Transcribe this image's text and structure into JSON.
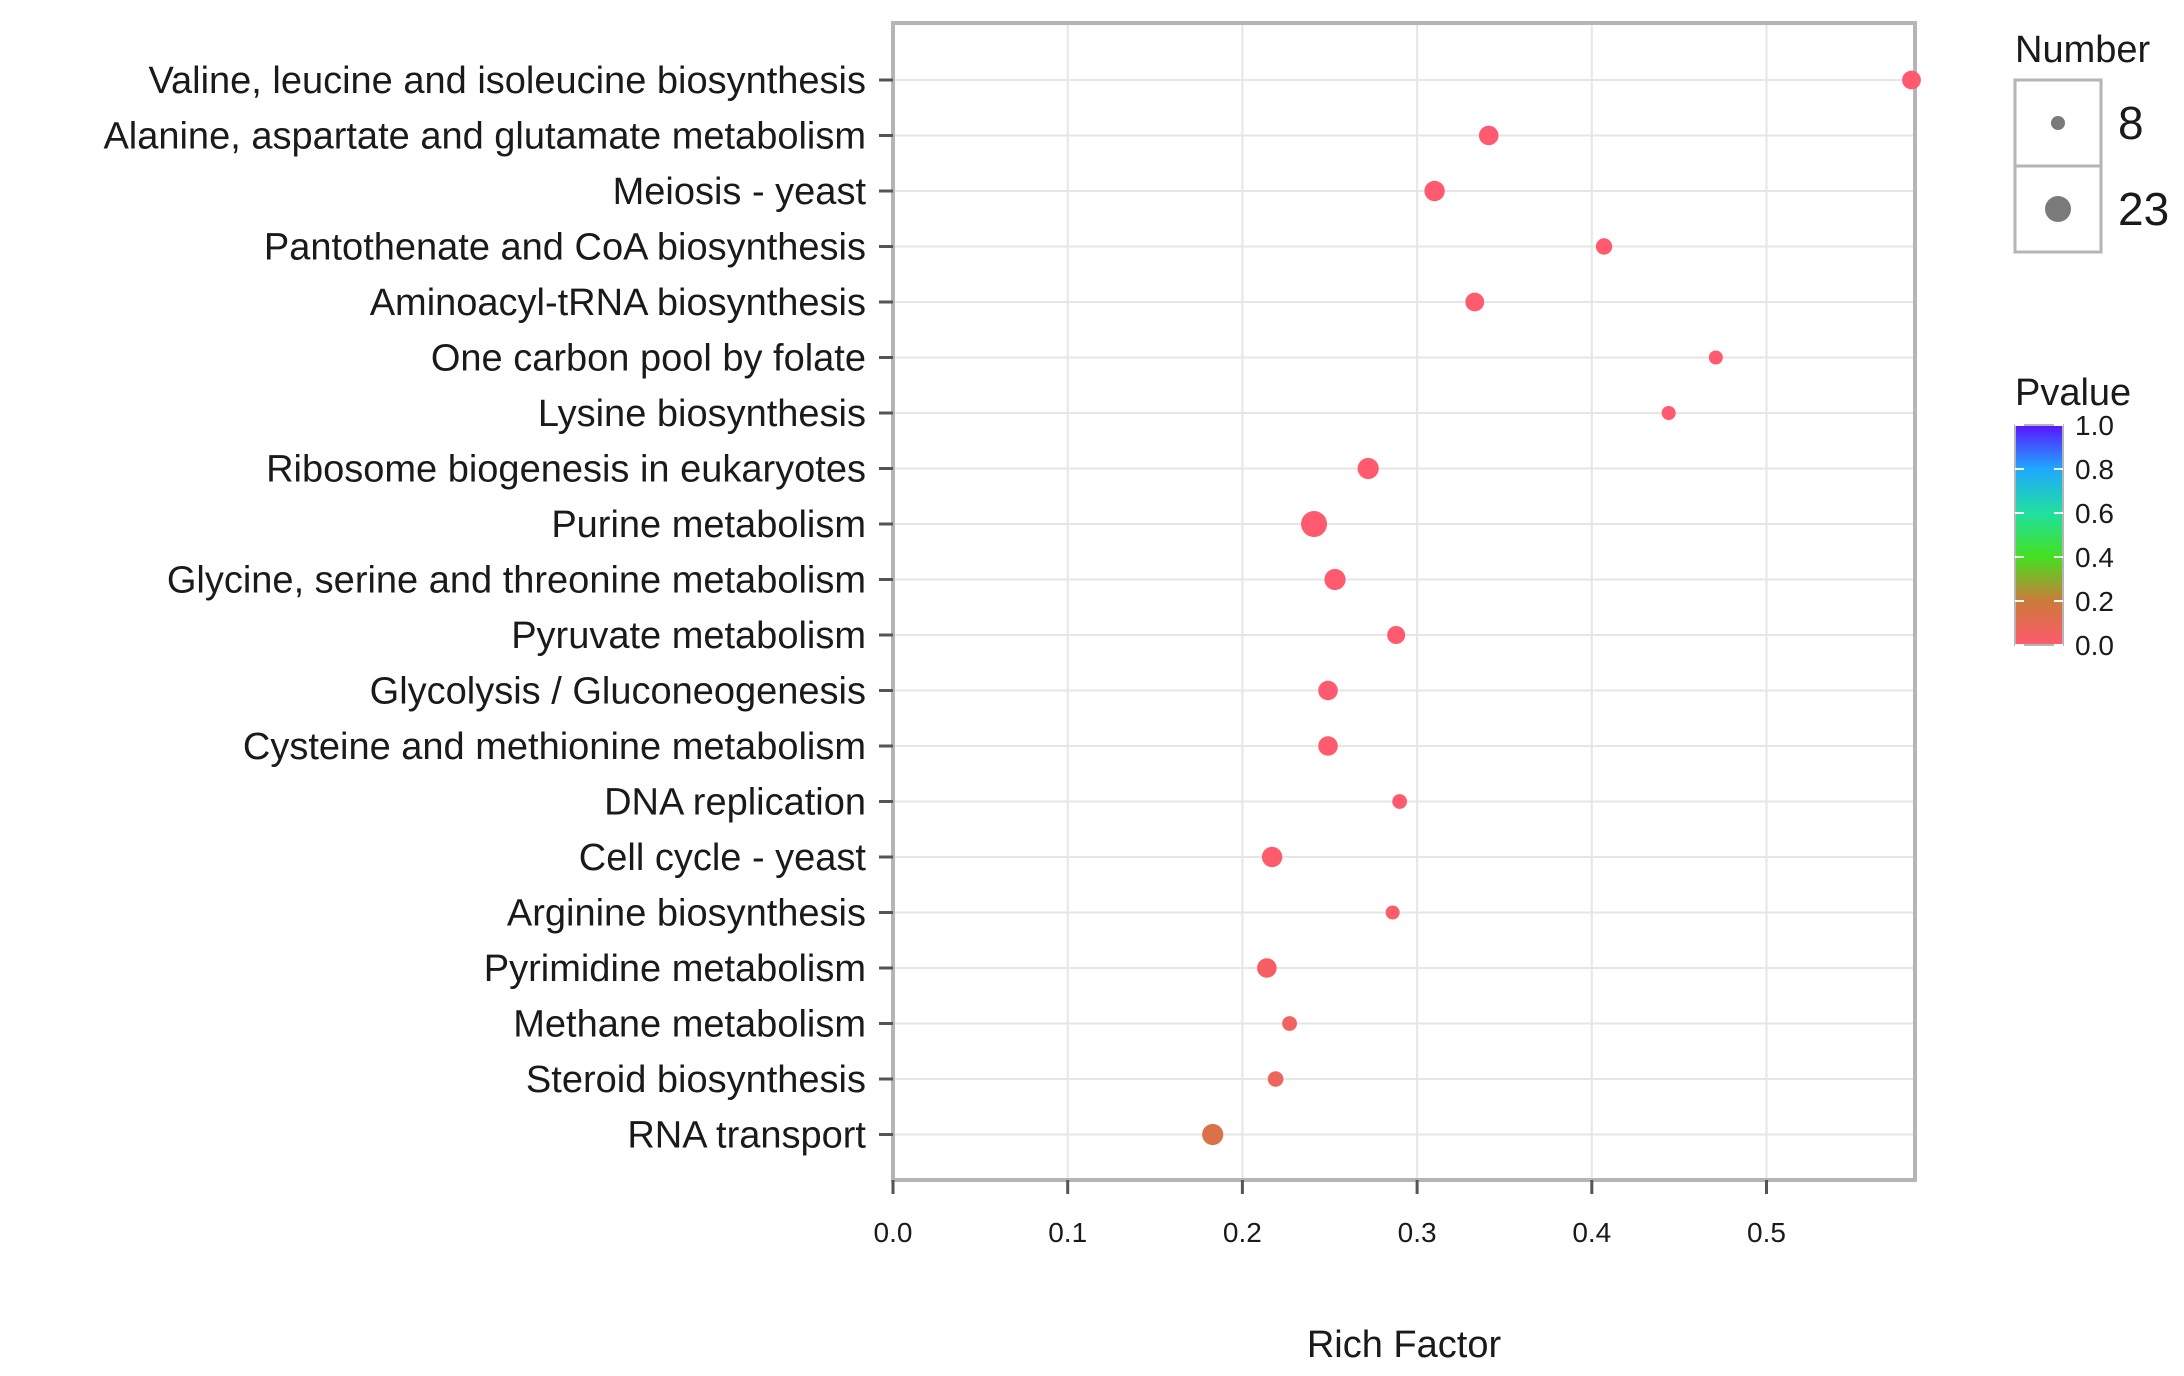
{
  "chart_data": {
    "type": "scatter",
    "title": "",
    "xlabel": "Rich Factor",
    "ylabel": "",
    "xlim": [
      0.0,
      0.585
    ],
    "xticks": [
      "0.0",
      "0.1",
      "0.2",
      "0.3",
      "0.4",
      "0.5"
    ],
    "xtick_values": [
      0.0,
      0.1,
      0.2,
      0.3,
      0.4,
      0.5
    ],
    "grid": true,
    "categories": [
      "Valine, leucine and isoleucine biosynthesis",
      "Alanine, aspartate and glutamate metabolism",
      "Meiosis - yeast",
      "Pantothenate and CoA biosynthesis",
      "Aminoacyl-tRNA biosynthesis",
      "One carbon pool by folate",
      "Lysine biosynthesis",
      "Ribosome biogenesis in eukaryotes",
      "Purine metabolism",
      "Glycine, serine and threonine metabolism",
      "Pyruvate metabolism",
      "Glycolysis / Gluconeogenesis",
      "Cysteine and methionine metabolism",
      "DNA replication",
      "Cell cycle - yeast",
      "Arginine biosynthesis",
      "Pyrimidine metabolism",
      "Methane metabolism",
      "Steroid biosynthesis",
      "RNA transport"
    ],
    "rich_factor": [
      0.583,
      0.341,
      0.31,
      0.407,
      0.333,
      0.471,
      0.444,
      0.272,
      0.241,
      0.253,
      0.288,
      0.249,
      0.249,
      0.29,
      0.217,
      0.286,
      0.214,
      0.227,
      0.219,
      0.183
    ],
    "number": [
      14,
      15,
      16,
      11,
      14,
      8,
      8,
      17,
      23,
      17,
      13,
      15,
      15,
      9,
      16,
      8,
      15,
      9,
      10,
      17
    ],
    "pvalue": [
      0.0,
      0.0,
      0.0,
      0.0,
      0.0,
      0.0,
      0.0,
      0.0,
      0.0,
      0.0,
      0.0,
      0.0,
      0.0,
      0.0,
      0.01,
      0.01,
      0.03,
      0.05,
      0.07,
      0.15
    ],
    "size_legend": {
      "title": "Number",
      "values": [
        8,
        23
      ]
    },
    "color_legend": {
      "title": "Pvalue",
      "ticks": [
        "1.0",
        "0.8",
        "0.6",
        "0.4",
        "0.2",
        "0.0"
      ],
      "tick_values": [
        1.0,
        0.8,
        0.6,
        0.4,
        0.2,
        0.0
      ],
      "range": [
        0.0,
        1.0
      ],
      "low_color": "#ff5a6e",
      "high_color": "#5a14ff"
    }
  }
}
